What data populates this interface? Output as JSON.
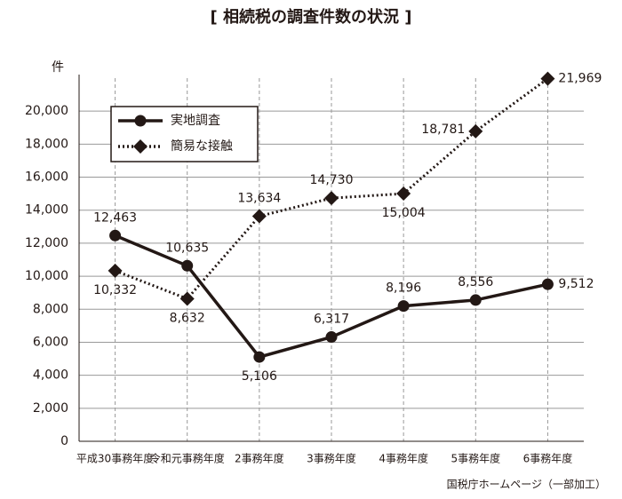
{
  "chart_data": {
    "type": "line",
    "title": "[ 相続税の調査件数の状況 ]",
    "y_label": "件",
    "source": "国税庁ホームページ（一部加工）",
    "categories": [
      "平成30事務年度",
      "令和元事務年度",
      "2事務年度",
      "3事務年度",
      "4事務年度",
      "5事務年度",
      "6事務年度"
    ],
    "series": [
      {
        "name": "実地調査",
        "color": "#231815",
        "line_style": "solid",
        "marker": "circle",
        "values": [
          12463,
          10635,
          5106,
          6317,
          8196,
          8556,
          9512
        ],
        "value_labels": [
          "12,463",
          "10,635",
          "5,106",
          "6,317",
          "8,196",
          "8,556",
          "9,512"
        ]
      },
      {
        "name": "簡易な接触",
        "color": "#231815",
        "line_style": "dotted",
        "marker": "diamond",
        "values": [
          10332,
          8632,
          13634,
          14730,
          15004,
          18781,
          21969
        ],
        "value_labels": [
          "10,332",
          "8,632",
          "13,634",
          "14,730",
          "15,004",
          "18,781",
          "21,969"
        ]
      }
    ],
    "ylim": [
      0,
      22000
    ],
    "yticks": [
      0,
      {
        "value": 2000,
        "label": "2,000"
      },
      {
        "value": 4000,
        "label": "4,000"
      },
      {
        "value": 6000,
        "label": "6,000"
      },
      {
        "value": 8000,
        "label": "8,000"
      },
      {
        "value": 10000,
        "label": "10,000"
      },
      {
        "value": 12000,
        "label": "12,000"
      },
      {
        "value": 14000,
        "label": "14,000"
      },
      {
        "value": 16000,
        "label": "16,000"
      },
      {
        "value": 18000,
        "label": "18,000"
      },
      {
        "value": 20000,
        "label": "20,000"
      }
    ],
    "grid": true
  }
}
